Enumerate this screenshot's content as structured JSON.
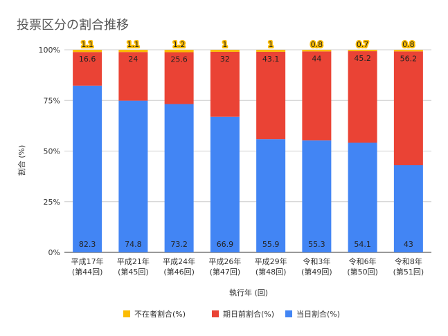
{
  "chart_data": {
    "type": "bar",
    "stacked": true,
    "normalized": true,
    "title": "投票区分の割合推移",
    "xlabel": "執行年 (回)",
    "ylabel": "割合 (%)",
    "ylim": [
      0,
      100
    ],
    "yticks": [
      "0%",
      "25%",
      "50%",
      "75%",
      "100%"
    ],
    "grid": true,
    "legend_position": "bottom",
    "categories": [
      [
        "平成17年",
        "(第44回)"
      ],
      [
        "平成21年",
        "(第45回)"
      ],
      [
        "平成24年",
        "(第46回)"
      ],
      [
        "平成26年",
        "(第47回)"
      ],
      [
        "平成29年",
        "(第48回)"
      ],
      [
        "令和3年",
        "(第49回)"
      ],
      [
        "令和6年",
        "(第50回)"
      ],
      [
        "令和8年",
        "(第51回)"
      ]
    ],
    "series": [
      {
        "name": "当日割合(%)",
        "color": "#4285F4",
        "values": [
          82.3,
          74.8,
          73.2,
          66.9,
          55.9,
          55.3,
          54.1,
          43
        ]
      },
      {
        "name": "期日前割合(%)",
        "color": "#EA4335",
        "values": [
          16.6,
          24,
          25.6,
          32,
          43.1,
          44,
          45.2,
          56.2
        ]
      },
      {
        "name": "不在者割合(%)",
        "color": "#FBBC04",
        "values": [
          1.1,
          1.1,
          1.2,
          1,
          1,
          0.8,
          0.7,
          0.8
        ]
      }
    ],
    "legend_order": [
      2,
      1,
      0
    ]
  }
}
